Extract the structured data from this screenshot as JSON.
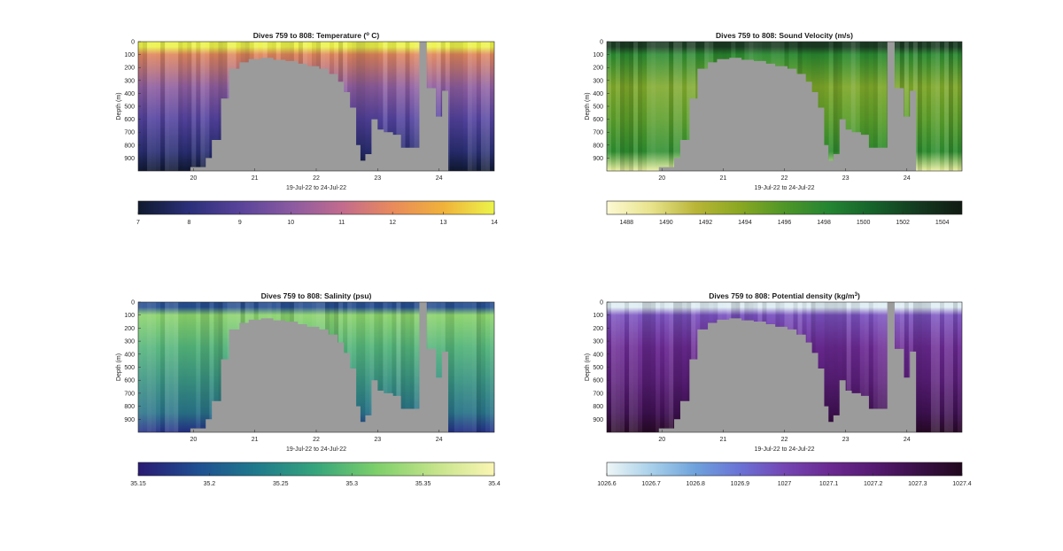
{
  "chart_data": [
    {
      "type": "heatmap",
      "title": "Dives 759 to 808: Temperature (",
      "title_unit": "o",
      "title_end": " C)",
      "ylabel": "Depth (m)",
      "xlabel": "19-Jul-22 to 24-Jul-22",
      "y_ticks": [
        "0",
        "100",
        "200",
        "300",
        "400",
        "500",
        "600",
        "700",
        "800",
        "900"
      ],
      "x_ticks": [
        "20",
        "21",
        "22",
        "23",
        "24"
      ],
      "x_range": [
        19.1,
        24.9
      ],
      "y_range": [
        0,
        1000
      ],
      "colorbar": {
        "ticks": [
          "7",
          "8",
          "9",
          "10",
          "11",
          "12",
          "13",
          "14"
        ],
        "range": [
          7,
          14
        ],
        "colors": [
          "#0f1a2e",
          "#2b2f7a",
          "#58439a",
          "#8a5aa1",
          "#c26b8e",
          "#e98a5c",
          "#f0b23a",
          "#ecf44a"
        ]
      },
      "profile": {
        "surface": "#ecf44a",
        "upper": "#e0855c",
        "mid": "#8f5ea0",
        "lower": "#5443a0",
        "deep": "#2a2f74",
        "bottom": "#101a33"
      }
    },
    {
      "type": "heatmap",
      "title": "Dives 759 to 808: Sound Velocity (m/s)",
      "title_unit": "",
      "title_end": "",
      "ylabel": "Depth (m)",
      "xlabel": "19-Jul-22 to 24-Jul-22",
      "y_ticks": [
        "0",
        "100",
        "200",
        "300",
        "400",
        "500",
        "600",
        "700",
        "800",
        "900"
      ],
      "x_ticks": [
        "20",
        "21",
        "22",
        "23",
        "24"
      ],
      "x_range": [
        19.1,
        24.9
      ],
      "y_range": [
        0,
        1000
      ],
      "colorbar": {
        "ticks": [
          "1488",
          "1490",
          "1492",
          "1494",
          "1496",
          "1498",
          "1500",
          "1502",
          "1504"
        ],
        "range": [
          1487,
          1505
        ],
        "colors": [
          "#fdf9d4",
          "#e8e38c",
          "#b9b538",
          "#8aa822",
          "#4f9628",
          "#248532",
          "#16622a",
          "#143a20",
          "#111a12"
        ]
      },
      "profile": {
        "surface": "#1c3d24",
        "upper": "#2a8a30",
        "mid": "#7fa82a",
        "lower": "#5b9e2a",
        "deep": "#2e8e30",
        "bottom": "#eef0a0"
      }
    },
    {
      "type": "heatmap",
      "title": "Dives 759 to 808: Salinity (psu)",
      "title_unit": "",
      "title_end": "",
      "ylabel": "Depth (m)",
      "xlabel": "19-Jul-22 to 24-Jul-22",
      "y_ticks": [
        "0",
        "100",
        "200",
        "300",
        "400",
        "500",
        "600",
        "700",
        "800",
        "900"
      ],
      "x_ticks": [
        "20",
        "21",
        "22",
        "23",
        "24"
      ],
      "x_range": [
        19.1,
        24.9
      ],
      "y_range": [
        0,
        1000
      ],
      "colorbar": {
        "ticks": [
          "35.15",
          "35.2",
          "35.25",
          "35.3",
          "35.35",
          "35.4"
        ],
        "range": [
          35.15,
          35.4
        ],
        "colors": [
          "#2a1a74",
          "#1f4f91",
          "#1f7a8c",
          "#36a57c",
          "#7ccf6a",
          "#c4e38a",
          "#fbf6b4"
        ]
      },
      "profile": {
        "surface": "#274f92",
        "upper": "#8bd36a",
        "mid": "#53b47a",
        "lower": "#3a9482",
        "deep": "#297389",
        "bottom": "#262f88"
      }
    },
    {
      "type": "heatmap",
      "title": "Dives 759 to 808: Potential density (kg/m",
      "title_unit": "3",
      "title_end": ")",
      "ylabel": "Depth (m)",
      "xlabel": "19-Jul-22 to 24-Jul-22",
      "y_ticks": [
        "0",
        "100",
        "200",
        "300",
        "400",
        "500",
        "600",
        "700",
        "800",
        "900"
      ],
      "x_ticks": [
        "20",
        "21",
        "22",
        "23",
        "24"
      ],
      "x_range": [
        19.1,
        24.9
      ],
      "y_range": [
        0,
        1000
      ],
      "colorbar": {
        "ticks": [
          "1026.6",
          "1026.7",
          "1026.8",
          "1026.9",
          "1027",
          "1027.1",
          "1027.2",
          "1027.3",
          "1027.4"
        ],
        "range": [
          1026.6,
          1027.4
        ],
        "colors": [
          "#eef6f6",
          "#a8d0ea",
          "#6ea2dc",
          "#6a72d6",
          "#7446b4",
          "#6b2a92",
          "#561a72",
          "#3a1048",
          "#22081e"
        ]
      },
      "profile": {
        "surface": "#dfeef4",
        "upper": "#7a52c0",
        "mid": "#6c2a94",
        "lower": "#5c1f7c",
        "deep": "#421257",
        "bottom": "#2a0a28"
      }
    }
  ],
  "terrain": {
    "color": "#9b9b9b",
    "steps": [
      [
        19.1,
        1000
      ],
      [
        19.95,
        970
      ],
      [
        20.2,
        900
      ],
      [
        20.3,
        760
      ],
      [
        20.45,
        440
      ],
      [
        20.58,
        210
      ],
      [
        20.75,
        160
      ],
      [
        20.9,
        135
      ],
      [
        21.1,
        125
      ],
      [
        21.3,
        140
      ],
      [
        21.5,
        150
      ],
      [
        21.7,
        170
      ],
      [
        21.85,
        190
      ],
      [
        22.05,
        210
      ],
      [
        22.2,
        250
      ],
      [
        22.35,
        310
      ],
      [
        22.45,
        390
      ],
      [
        22.55,
        510
      ],
      [
        22.65,
        800
      ],
      [
        22.72,
        920
      ],
      [
        22.8,
        870
      ],
      [
        22.9,
        600
      ],
      [
        23.0,
        680
      ],
      [
        23.1,
        700
      ],
      [
        23.25,
        720
      ],
      [
        23.38,
        820
      ],
      [
        23.55,
        820
      ],
      [
        23.68,
        0
      ],
      [
        23.8,
        360
      ],
      [
        23.95,
        580
      ],
      [
        24.05,
        380
      ],
      [
        24.15,
        1000
      ],
      [
        24.9,
        1000
      ]
    ]
  }
}
